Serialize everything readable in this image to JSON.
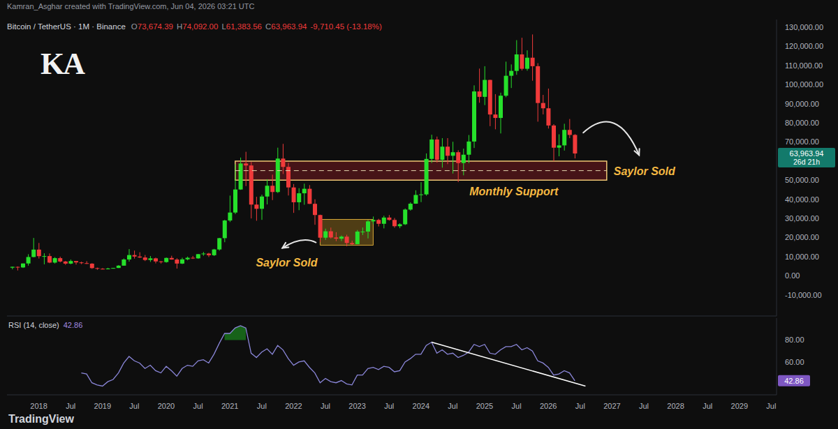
{
  "header": {
    "credit": "Kamran_Asghar created with TradingView.com, Jun 04, 2026 03:21 UTC",
    "logo": "KA"
  },
  "footer": "TradingView",
  "chart_data": [
    {
      "type": "candlestick",
      "title": "Bitcoin / TetherUS · 1M · Binance",
      "ohlc_header": [
        {
          "label": "O",
          "value": 73674.39
        },
        {
          "label": "H",
          "value": 74092.0
        },
        {
          "label": "L",
          "value": 61383.56
        },
        {
          "label": "C",
          "value": 63963.94
        }
      ],
      "change": "-9,710.45 (-13.18%)",
      "countdown": "26d 21h",
      "x": [
        "2017-08",
        "2017-09",
        "2017-10",
        "2017-11",
        "2017-12",
        "2018-01",
        "2018-02",
        "2018-03",
        "2018-04",
        "2018-05",
        "2018-06",
        "2018-07",
        "2018-08",
        "2018-09",
        "2018-10",
        "2018-11",
        "2018-12",
        "2019-01",
        "2019-02",
        "2019-03",
        "2019-04",
        "2019-05",
        "2019-06",
        "2019-07",
        "2019-08",
        "2019-09",
        "2019-10",
        "2019-11",
        "2019-12",
        "2020-01",
        "2020-02",
        "2020-03",
        "2020-04",
        "2020-05",
        "2020-06",
        "2020-07",
        "2020-08",
        "2020-09",
        "2020-10",
        "2020-11",
        "2020-12",
        "2021-01",
        "2021-02",
        "2021-03",
        "2021-04",
        "2021-05",
        "2021-06",
        "2021-07",
        "2021-08",
        "2021-09",
        "2021-10",
        "2021-11",
        "2021-12",
        "2022-01",
        "2022-02",
        "2022-03",
        "2022-04",
        "2022-05",
        "2022-06",
        "2022-07",
        "2022-08",
        "2022-09",
        "2022-10",
        "2022-11",
        "2022-12",
        "2023-01",
        "2023-02",
        "2023-03",
        "2023-04",
        "2023-05",
        "2023-06",
        "2023-07",
        "2023-08",
        "2023-09",
        "2023-10",
        "2023-11",
        "2023-12",
        "2024-01",
        "2024-02",
        "2024-03",
        "2024-04",
        "2024-05",
        "2024-06",
        "2024-07",
        "2024-08",
        "2024-09",
        "2024-10",
        "2024-11",
        "2024-12",
        "2025-01",
        "2025-02",
        "2025-03",
        "2025-04",
        "2025-05",
        "2025-06",
        "2025-07",
        "2025-08",
        "2025-09",
        "2025-10",
        "2025-11",
        "2025-12",
        "2026-01",
        "2026-02",
        "2026-03",
        "2026-04",
        "2026-05",
        "2026-06"
      ],
      "open": [
        4261,
        4689,
        4378,
        6463,
        9837,
        13715,
        10285,
        10326,
        6923,
        9246,
        7494,
        6391,
        7735,
        7011,
        6626,
        6369,
        4041,
        3702,
        3434,
        3814,
        4103,
        5321,
        8555,
        10855,
        10085,
        9588,
        8289,
        9140,
        7540,
        7195,
        9352,
        8523,
        6412,
        8620,
        9448,
        9138,
        11335,
        11650,
        10776,
        13791,
        19696,
        28923,
        33092,
        45134,
        58740,
        57697,
        37253,
        35045,
        41461,
        47100,
        43820,
        61300,
        56951,
        46216,
        38466,
        43160,
        45510,
        37644,
        31801,
        19942,
        23296,
        20048,
        19423,
        20490,
        17165,
        16542,
        23125,
        23141,
        28466,
        29233,
        27210,
        30472,
        29232,
        25941,
        26962,
        34640,
        37723,
        42283,
        42582,
        61131,
        71280,
        60672,
        67540,
        62772,
        64628,
        58974,
        63328,
        70216,
        96407,
        93576,
        102430,
        84350,
        82550,
        94172,
        104592,
        107135,
        115764,
        108246,
        114049,
        109608,
        90360,
        87600,
        78600,
        67000,
        68200,
        76300,
        73674.39
      ],
      "high": [
        4745,
        4939,
        6470,
        11300,
        19798,
        17176,
        11786,
        11700,
        9759,
        10020,
        7786,
        8507,
        7750,
        7410,
        7680,
        6615,
        4312,
        4070,
        4198,
        4140,
        5600,
        9074,
        13970,
        13200,
        12325,
        10905,
        10370,
        9513,
        7750,
        9578,
        10500,
        9188,
        9460,
        10067,
        10380,
        11444,
        12468,
        12050,
        14100,
        19863,
        29300,
        41950,
        58352,
        61844,
        64854,
        59500,
        41330,
        42448,
        50500,
        52920,
        67000,
        69000,
        59053,
        47990,
        45821,
        48190,
        47444,
        40023,
        31986,
        24668,
        25211,
        22800,
        21085,
        21480,
        18388,
        23960,
        25250,
        29185,
        31000,
        29820,
        31431,
        31804,
        30244,
        27483,
        35198,
        38450,
        44700,
        48970,
        64000,
        73777,
        72797,
        71979,
        71997,
        70080,
        65660,
        66498,
        73620,
        99588,
        108353,
        109588,
        102500,
        95000,
        95759,
        111980,
        110530,
        123218,
        124474,
        117900,
        126199,
        111190,
        94600,
        97900,
        79300,
        74000,
        79500,
        82000,
        74092
      ],
      "low": [
        3400,
        2817,
        4110,
        5325,
        9722,
        9035,
        6000,
        6600,
        6430,
        7032,
        5755,
        6070,
        5880,
        6100,
        6205,
        3652,
        3156,
        3349,
        3373,
        3785,
        4067,
        5320,
        7440,
        9010,
        9320,
        7710,
        7300,
        6515,
        6435,
        6871,
        8450,
        3782,
        6150,
        8117,
        8833,
        8893,
        10518,
        9825,
        10375,
        13195,
        17572,
        28130,
        32296,
        44950,
        46930,
        30000,
        28805,
        29278,
        37332,
        39600,
        43283,
        53256,
        42000,
        32917,
        34322,
        37155,
        37578,
        26700,
        17622,
        18782,
        19520,
        18125,
        18200,
        15476,
        16256,
        16499,
        21351,
        19550,
        26943,
        25811,
        24800,
        28861,
        25166,
        24901,
        26538,
        34098,
        37629,
        38555,
        41884,
        59005,
        59191,
        56552,
        58402,
        53485,
        49000,
        52550,
        58946,
        66835,
        90500,
        89256,
        78258,
        76606,
        74434,
        93377,
        98200,
        105100,
        107350,
        107255,
        102000,
        80600,
        84400,
        77000,
        60000,
        62500,
        65500,
        72000,
        61383.56
      ],
      "close": [
        4724,
        4378,
        6463,
        9838,
        13716,
        10285,
        10326,
        6923,
        9246,
        7494,
        6391,
        7730,
        7011,
        6626,
        6371,
        4041,
        3702,
        3434,
        3814,
        4103,
        5321,
        8555,
        10855,
        10085,
        9588,
        8289,
        9140,
        7540,
        7196,
        9352,
        8523,
        6410,
        8620,
        9448,
        9138,
        11335,
        11650,
        10776,
        13791,
        19696,
        28923,
        33092,
        45135,
        58740,
        57694,
        37253,
        35045,
        41461,
        47100,
        43824,
        61300,
        56950,
        46217,
        38466,
        43160,
        45510,
        37630,
        31801,
        19942,
        23293,
        20050,
        19423,
        20491,
        17164,
        16542,
        23125,
        23141,
        28465,
        29233,
        27210,
        30472,
        29232,
        25941,
        26962,
        34639,
        37723,
        42283,
        42582,
        61130,
        71280,
        60672,
        67540,
        62772,
        64628,
        58974,
        63328,
        70215,
        96408,
        93576,
        102430,
        84350,
        82550,
        94172,
        104592,
        107135,
        115764,
        108246,
        114049,
        109608,
        90360,
        87600,
        78600,
        67000,
        68200,
        76300,
        73674.39,
        63963.94
      ],
      "colors": [
        "#26e02b",
        "#f03a3a",
        "#26e02b",
        "#26e02b",
        "#26e02b",
        "#f03a3a",
        "#26e02b",
        "#f03a3a",
        "#26e02b",
        "#f03a3a",
        "#f03a3a",
        "#26e02b",
        "#f03a3a",
        "#f03a3a",
        "#f03a3a",
        "#f03a3a",
        "#f03a3a",
        "#f03a3a",
        "#26e02b",
        "#26e02b",
        "#26e02b",
        "#26e02b",
        "#26e02b",
        "#f03a3a",
        "#f03a3a",
        "#f03a3a",
        "#26e02b",
        "#f03a3a",
        "#f03a3a",
        "#26e02b",
        "#f03a3a",
        "#f03a3a",
        "#26e02b",
        "#26e02b",
        "#f03a3a",
        "#26e02b",
        "#26e02b",
        "#f03a3a",
        "#26e02b",
        "#26e02b",
        "#26e02b",
        "#26e02b",
        "#26e02b",
        "#26e02b",
        "#f03a3a",
        "#f03a3a",
        "#f03a3a",
        "#26e02b",
        "#26e02b",
        "#f03a3a",
        "#26e02b",
        "#f03a3a",
        "#f03a3a",
        "#f03a3a",
        "#26e02b",
        "#26e02b",
        "#f03a3a",
        "#f03a3a",
        "#f03a3a",
        "#26e02b",
        "#f03a3a",
        "#f03a3a",
        "#26e02b",
        "#f03a3a",
        "#f03a3a",
        "#26e02b",
        "#26e02b",
        "#26e02b",
        "#26e02b",
        "#f03a3a",
        "#26e02b",
        "#f03a3a",
        "#f03a3a",
        "#26e02b",
        "#26e02b",
        "#26e02b",
        "#26e02b",
        "#26e02b",
        "#26e02b",
        "#26e02b",
        "#f03a3a",
        "#26e02b",
        "#f03a3a",
        "#26e02b",
        "#f03a3a",
        "#26e02b",
        "#26e02b",
        "#26e02b",
        "#f03a3a",
        "#26e02b",
        "#f03a3a",
        "#f03a3a",
        "#26e02b",
        "#26e02b",
        "#26e02b",
        "#26e02b",
        "#f03a3a",
        "#26e02b",
        "#f03a3a",
        "#f03a3a",
        "#f03a3a",
        "#f03a3a",
        "#f03a3a",
        "#26e02b",
        "#26e02b",
        "#f03a3a",
        "#f03a3a"
      ],
      "xlim": [
        "2017-07",
        "2029-08"
      ],
      "ylim": [
        -21000,
        134000
      ],
      "yticks": [
        {
          "value": -10000,
          "label": "-10,000.00"
        },
        {
          "value": 0,
          "label": "0.00"
        },
        {
          "value": 10000,
          "label": "10,000.00"
        },
        {
          "value": 20000,
          "label": "20,000.00"
        },
        {
          "value": 30000,
          "label": "30,000.00"
        },
        {
          "value": 40000,
          "label": "40,000.00"
        },
        {
          "value": 50000,
          "label": "50,000.00"
        },
        {
          "value": 70000,
          "label": "70,000.00"
        },
        {
          "value": 80000,
          "label": "80,000.00"
        },
        {
          "value": 90000,
          "label": "90,000.00"
        },
        {
          "value": 100000,
          "label": "100,000.00"
        },
        {
          "value": 110000,
          "label": "110,000.00"
        },
        {
          "value": 120000,
          "label": "120,000.00"
        },
        {
          "value": 130000,
          "label": "130,000.00"
        }
      ],
      "grid": false,
      "tick_labels": "y",
      "annotations": {
        "support_zone": {
          "label": "Monthly Support",
          "note": "Saylor Sold",
          "x": [
            "2021-02",
            "2026-12"
          ],
          "y": [
            50000,
            60000
          ],
          "mid": 55000
        },
        "bear_zone": {
          "label": "Saylor Sold",
          "x": [
            "2022-06",
            "2023-04"
          ],
          "y": [
            16000,
            29500
          ]
        }
      }
    },
    {
      "type": "line",
      "title": "RSI (14, close)",
      "color": "#8a86d8",
      "x": [
        "2018-09",
        "2018-10",
        "2018-11",
        "2018-12",
        "2019-01",
        "2019-02",
        "2019-03",
        "2019-04",
        "2019-05",
        "2019-06",
        "2019-07",
        "2019-08",
        "2019-09",
        "2019-10",
        "2019-11",
        "2019-12",
        "2020-01",
        "2020-02",
        "2020-03",
        "2020-04",
        "2020-05",
        "2020-06",
        "2020-07",
        "2020-08",
        "2020-09",
        "2020-10",
        "2020-11",
        "2020-12",
        "2021-01",
        "2021-02",
        "2021-03",
        "2021-04",
        "2021-05",
        "2021-06",
        "2021-07",
        "2021-08",
        "2021-09",
        "2021-10",
        "2021-11",
        "2021-12",
        "2022-01",
        "2022-02",
        "2022-03",
        "2022-04",
        "2022-05",
        "2022-06",
        "2022-07",
        "2022-08",
        "2022-09",
        "2022-10",
        "2022-11",
        "2022-12",
        "2023-01",
        "2023-02",
        "2023-03",
        "2023-04",
        "2023-05",
        "2023-06",
        "2023-07",
        "2023-08",
        "2023-09",
        "2023-10",
        "2023-11",
        "2023-12",
        "2024-01",
        "2024-02",
        "2024-03",
        "2024-04",
        "2024-05",
        "2024-06",
        "2024-07",
        "2024-08",
        "2024-09",
        "2024-10",
        "2024-11",
        "2024-12",
        "2025-01",
        "2025-02",
        "2025-03",
        "2025-04",
        "2025-05",
        "2025-06",
        "2025-07",
        "2025-08",
        "2025-09",
        "2025-10",
        "2025-11",
        "2025-12",
        "2026-01",
        "2026-02",
        "2026-03",
        "2026-04",
        "2026-05",
        "2026-06"
      ],
      "values": [
        50,
        49,
        41,
        39,
        38,
        42,
        44,
        50,
        59,
        65,
        61,
        59,
        54,
        57,
        52,
        50,
        56,
        52,
        47,
        54,
        57,
        56,
        61,
        62,
        59,
        67,
        77,
        86,
        86,
        91,
        93,
        91,
        68,
        64,
        69,
        72,
        67,
        75,
        71,
        63,
        57,
        60,
        61,
        55,
        50,
        41,
        45,
        42,
        41,
        43,
        40,
        39,
        48,
        48,
        54,
        55,
        53,
        56,
        55,
        51,
        52,
        60,
        63,
        67,
        67,
        75,
        78,
        68,
        71,
        67,
        68,
        64,
        66,
        69,
        76,
        74,
        76,
        68,
        67,
        71,
        74,
        74,
        76,
        71,
        73,
        70,
        61,
        59,
        55,
        48,
        49,
        52,
        50,
        42.86
      ],
      "overbought": 80,
      "trendline": {
        "x": [
          "2024-03",
          "2026-08"
        ],
        "values": [
          78,
          38
        ],
        "color": "#ffffff"
      },
      "xlim": [
        "2017-07",
        "2029-08"
      ],
      "xticks": [
        {
          "value": "2018-01",
          "label": "2018"
        },
        {
          "value": "2018-07",
          "label": "Jul"
        },
        {
          "value": "2019-01",
          "label": "2019"
        },
        {
          "value": "2019-07",
          "label": "Jul"
        },
        {
          "value": "2020-01",
          "label": "2020"
        },
        {
          "value": "2020-07",
          "label": "Jul"
        },
        {
          "value": "2021-01",
          "label": "2021"
        },
        {
          "value": "2021-07",
          "label": "Jul"
        },
        {
          "value": "2022-01",
          "label": "2022"
        },
        {
          "value": "2022-07",
          "label": "Jul"
        },
        {
          "value": "2023-01",
          "label": "2023"
        },
        {
          "value": "2023-07",
          "label": "Jul"
        },
        {
          "value": "2024-01",
          "label": "2024"
        },
        {
          "value": "2024-07",
          "label": "Jul"
        },
        {
          "value": "2025-01",
          "label": "2025"
        },
        {
          "value": "2025-07",
          "label": "Jul"
        },
        {
          "value": "2026-01",
          "label": "2026"
        },
        {
          "value": "2026-07",
          "label": "Jul"
        },
        {
          "value": "2027-01",
          "label": "2027"
        },
        {
          "value": "2027-07",
          "label": "Jul"
        },
        {
          "value": "2028-01",
          "label": "2028"
        },
        {
          "value": "2028-07",
          "label": "Jul"
        },
        {
          "value": "2029-01",
          "label": "2029"
        },
        {
          "value": "2029-07",
          "label": "Jul"
        }
      ],
      "ylim": [
        30,
        100
      ],
      "yticks": [
        {
          "value": 80,
          "label": "80.00"
        },
        {
          "value": 60,
          "label": "60.00"
        }
      ],
      "grid": false
    }
  ]
}
